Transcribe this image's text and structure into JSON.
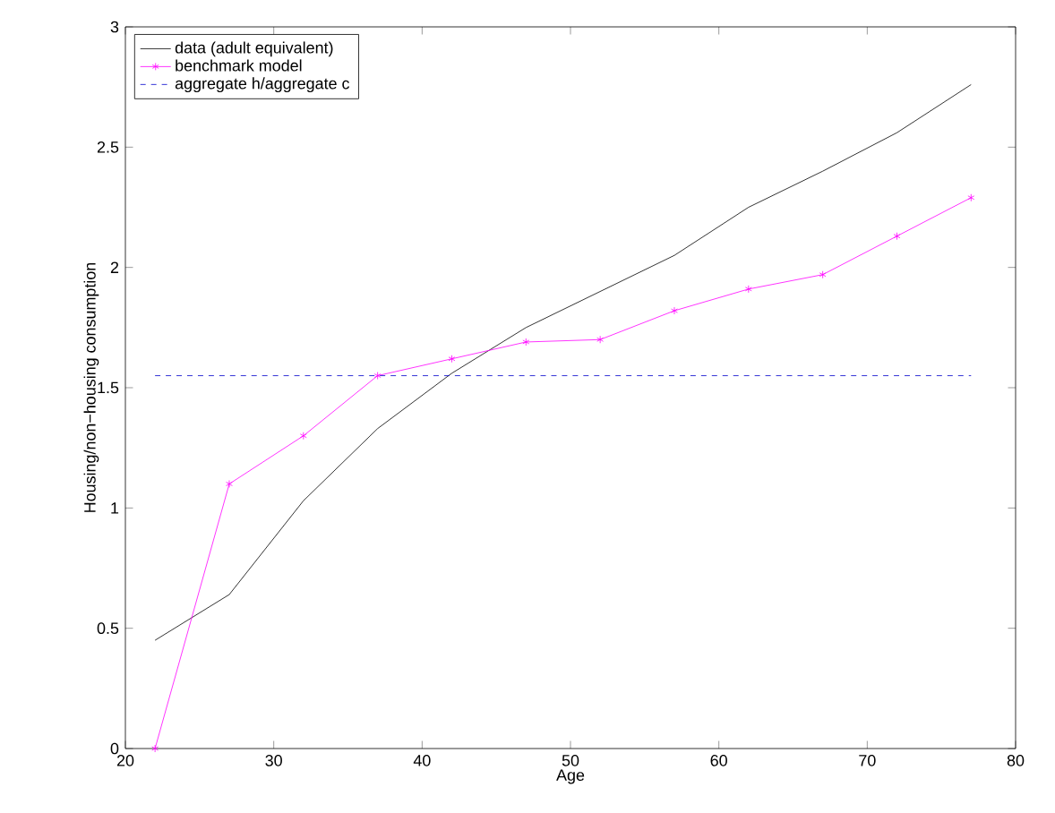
{
  "chart_data": {
    "type": "line",
    "xlabel": "Age",
    "ylabel": "Housing/non−housing consumption",
    "xlim": [
      20,
      80
    ],
    "ylim": [
      0,
      3
    ],
    "xticks": [
      20,
      30,
      40,
      50,
      60,
      70,
      80
    ],
    "yticks": [
      0,
      0.5,
      1,
      1.5,
      2,
      2.5,
      3
    ],
    "grid": false,
    "legend": "top left",
    "series": [
      {
        "name": "data (adult equivalent)",
        "color": "#000000",
        "marker": "none",
        "line_style": "solid",
        "x": [
          22,
          27,
          32,
          37,
          42,
          47,
          52,
          57,
          62,
          67,
          72,
          77
        ],
        "values": [
          0.45,
          0.64,
          1.03,
          1.33,
          1.56,
          1.75,
          1.9,
          2.05,
          2.25,
          2.4,
          2.56,
          2.76
        ]
      },
      {
        "name": "benchmark model",
        "color": "#ff00ff",
        "marker": "cross",
        "line_style": "solid",
        "x": [
          22,
          27,
          32,
          37,
          42,
          47,
          52,
          57,
          62,
          67,
          72,
          77
        ],
        "values": [
          0,
          1.1,
          1.3,
          1.55,
          1.62,
          1.69,
          1.7,
          1.82,
          1.91,
          1.97,
          2.13,
          2.29
        ]
      },
      {
        "name": "aggregate h/aggregate c",
        "color": "#0000cc",
        "marker": "none",
        "line_style": "dashed",
        "x": [
          22,
          77
        ],
        "values": [
          1.55,
          1.55
        ]
      }
    ]
  }
}
